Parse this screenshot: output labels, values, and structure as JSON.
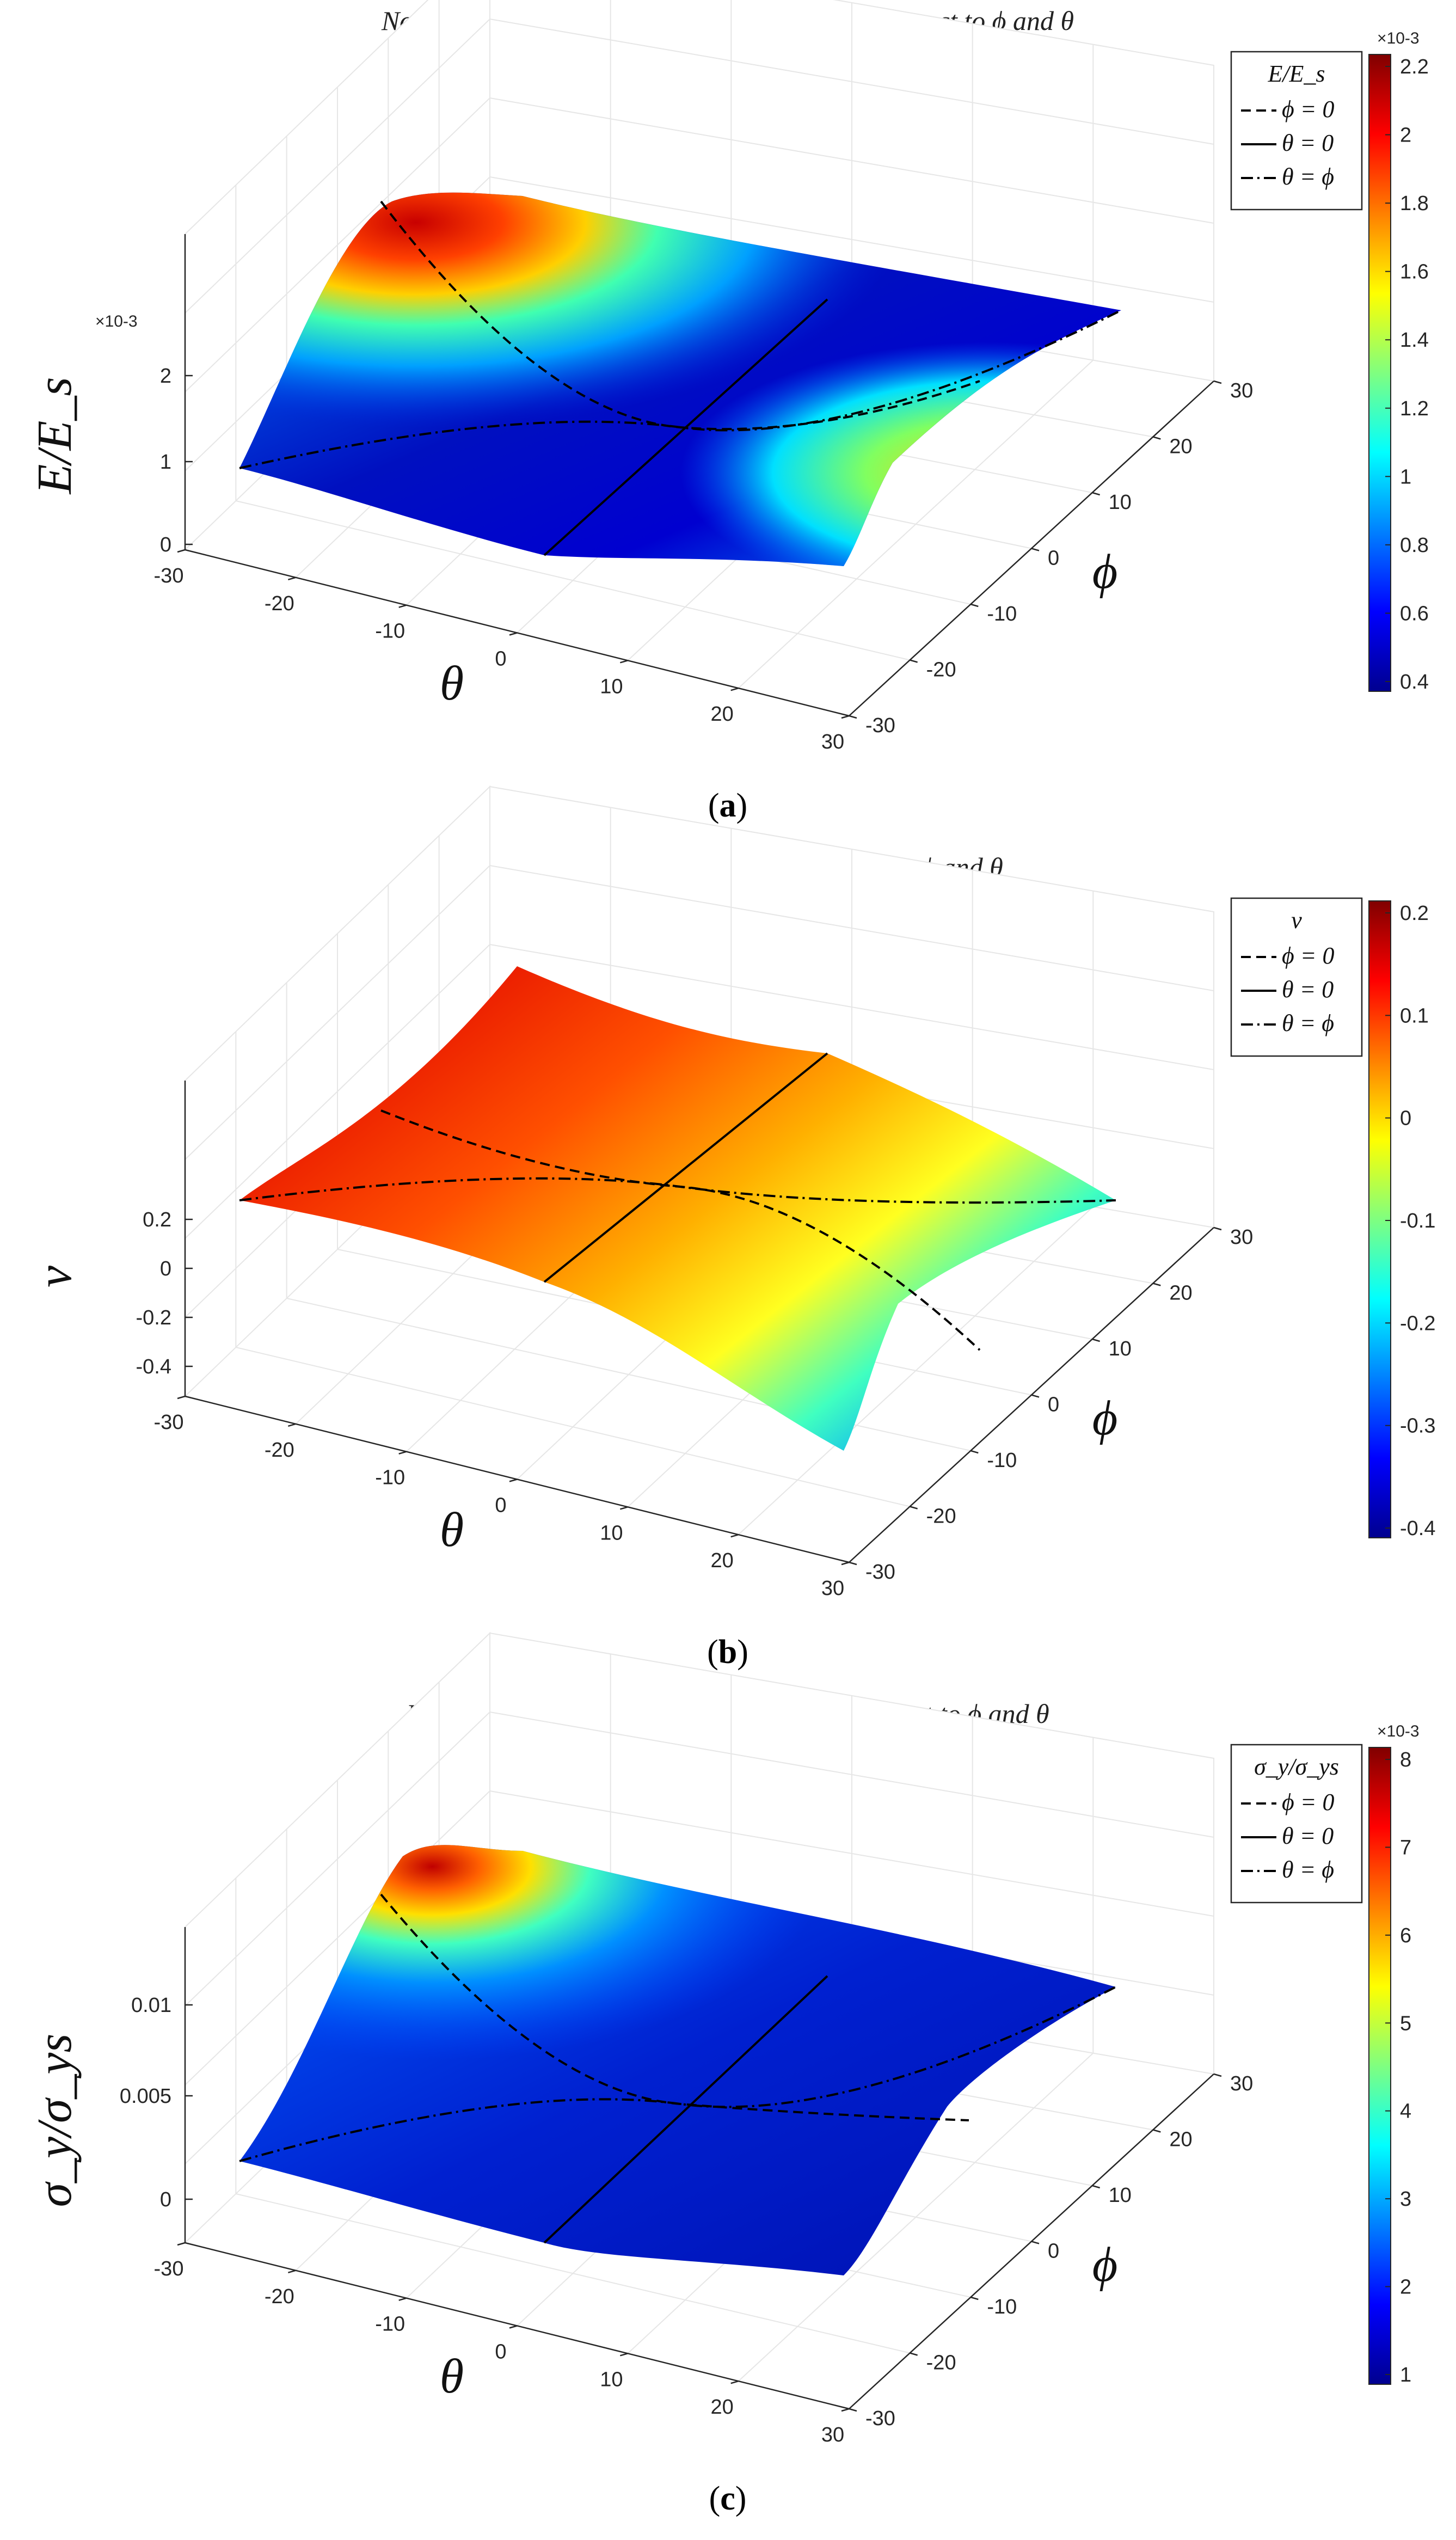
{
  "chart_data": [
    {
      "type": "surface",
      "title": "Normalized elastic modulus distribution with respect to ϕ and θ",
      "xlabel": "θ",
      "ylabel": "ϕ",
      "zlabel": "E/E_s",
      "xticks": [
        "-30",
        "-20",
        "-10",
        "0",
        "10",
        "20",
        "30"
      ],
      "yticks": [
        "-30",
        "-20",
        "-10",
        "0",
        "10",
        "20",
        "30"
      ],
      "zticks": [
        "0",
        "1",
        "2"
      ],
      "z_exponent": "×10-3",
      "xlim": [
        -30,
        30
      ],
      "ylim": [
        -30,
        30
      ],
      "legend_title": "E/E_s",
      "legend_entries": [
        "ϕ = 0",
        "θ = 0",
        "θ = ϕ"
      ],
      "colorbar_ticks": [
        "2.2",
        "2",
        "1.8",
        "1.6",
        "1.4",
        "1.2",
        "1",
        "0.8",
        "0.6",
        "0.4"
      ],
      "colorbar_exponent": "×10-3",
      "caption": "(a)",
      "caption_letter": "a",
      "surface_corner_z": [
        0.9,
        0.9,
        0.9,
        0.9
      ],
      "surface_center_z": 0.45
    },
    {
      "type": "surface",
      "title": "Poisson’s ratio distribution with respect to ϕ and θ",
      "xlabel": "θ",
      "ylabel": "ϕ",
      "zlabel": "ν",
      "xticks": [
        "-30",
        "-20",
        "-10",
        "0",
        "10",
        "20",
        "30"
      ],
      "yticks": [
        "-30",
        "-20",
        "-10",
        "0",
        "10",
        "20",
        "30"
      ],
      "zticks": [
        "0.2",
        "0",
        "-0.2",
        "-0.4"
      ],
      "z_exponent": "",
      "xlim": [
        -30,
        30
      ],
      "ylim": [
        -30,
        30
      ],
      "legend_title": "ν",
      "legend_entries": [
        "ϕ = 0",
        "θ = 0",
        "θ = ϕ"
      ],
      "colorbar_ticks": [
        "0.2",
        "0.1",
        "0",
        "-0.1",
        "-0.2",
        "-0.3",
        "-0.4"
      ],
      "colorbar_exponent": "",
      "caption": "(b)",
      "caption_letter": "b"
    },
    {
      "type": "surface",
      "title": "Normalized yield stress distribution with respect to ϕ and θ",
      "xlabel": "θ",
      "ylabel": "ϕ",
      "zlabel": "σ_y/σ_ys",
      "xticks": [
        "-30",
        "-20",
        "-10",
        "0",
        "10",
        "20",
        "30"
      ],
      "yticks": [
        "-30",
        "-20",
        "-10",
        "0",
        "10",
        "20",
        "30"
      ],
      "zticks": [
        "0.01",
        "0.005",
        "0"
      ],
      "z_exponent": "",
      "xlim": [
        -30,
        30
      ],
      "ylim": [
        -30,
        30
      ],
      "legend_title": "σ_y/σ_ys",
      "legend_entries": [
        "ϕ = 0",
        "θ = 0",
        "θ = ϕ"
      ],
      "colorbar_ticks": [
        "8",
        "7",
        "6",
        "5",
        "4",
        "3",
        "2",
        "1"
      ],
      "colorbar_exponent": "×10-3",
      "caption": "(c)",
      "caption_letter": "c"
    }
  ],
  "colors": {
    "jet": [
      "#00008f",
      "#0000ff",
      "#0080ff",
      "#00ffff",
      "#80ff80",
      "#ffff00",
      "#ff8000",
      "#ff0000",
      "#800000"
    ],
    "axis": "#262626",
    "grid": "#e6e6e6"
  }
}
